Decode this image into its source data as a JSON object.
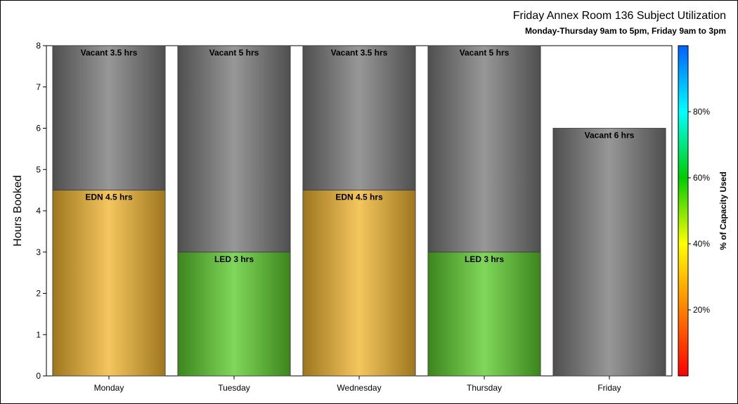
{
  "chart_data": {
    "type": "bar",
    "stacked": true,
    "title": "Friday Annex Room 136 Subject Utilization",
    "subtitle": "Monday-Thursday 9am to 5pm, Friday 9am to 3pm",
    "ylabel": "Hours Booked",
    "xlabel": "",
    "ylim": [
      0,
      8
    ],
    "yticks": [
      "0",
      "1",
      "2",
      "3",
      "4",
      "5",
      "6",
      "7",
      "8"
    ],
    "categories": [
      "Monday",
      "Tuesday",
      "Wednesday",
      "Thursday",
      "Friday"
    ],
    "bars": [
      {
        "category": "Monday",
        "segments": [
          {
            "subject": "EDN",
            "value": 4.5,
            "label": "EDN 4.5 hrs",
            "color": "#f2b630"
          },
          {
            "subject": "Vacant",
            "value": 3.5,
            "label": "Vacant 3.5 hrs",
            "color": "#7a7a7a"
          }
        ]
      },
      {
        "category": "Tuesday",
        "segments": [
          {
            "subject": "LED",
            "value": 3,
            "label": "LED 3 hrs",
            "color": "#5ccc2c"
          },
          {
            "subject": "Vacant",
            "value": 5,
            "label": "Vacant 5 hrs",
            "color": "#7a7a7a"
          }
        ]
      },
      {
        "category": "Wednesday",
        "segments": [
          {
            "subject": "EDN",
            "value": 4.5,
            "label": "EDN 4.5 hrs",
            "color": "#f2b630"
          },
          {
            "subject": "Vacant",
            "value": 3.5,
            "label": "Vacant 3.5 hrs",
            "color": "#7a7a7a"
          }
        ]
      },
      {
        "category": "Thursday",
        "segments": [
          {
            "subject": "LED",
            "value": 3,
            "label": "LED 3 hrs",
            "color": "#5ccc2c"
          },
          {
            "subject": "Vacant",
            "value": 5,
            "label": "Vacant 5 hrs",
            "color": "#7a7a7a"
          }
        ]
      },
      {
        "category": "Friday",
        "segments": [
          {
            "subject": "Vacant",
            "value": 6,
            "label": "Vacant 6 hrs",
            "color": "#7a7a7a"
          }
        ]
      }
    ],
    "colorbar": {
      "title": "% of Capacity Used",
      "range": [
        0,
        100
      ],
      "ticks": [
        20,
        40,
        60,
        80
      ],
      "tick_labels": [
        "20%",
        "40%",
        "60%",
        "80%"
      ],
      "colors": [
        "#ff0000",
        "#ff8000",
        "#ffff00",
        "#00cc00",
        "#00ffff",
        "#0060ff"
      ]
    },
    "grid": false,
    "legend": "right colorbar"
  }
}
